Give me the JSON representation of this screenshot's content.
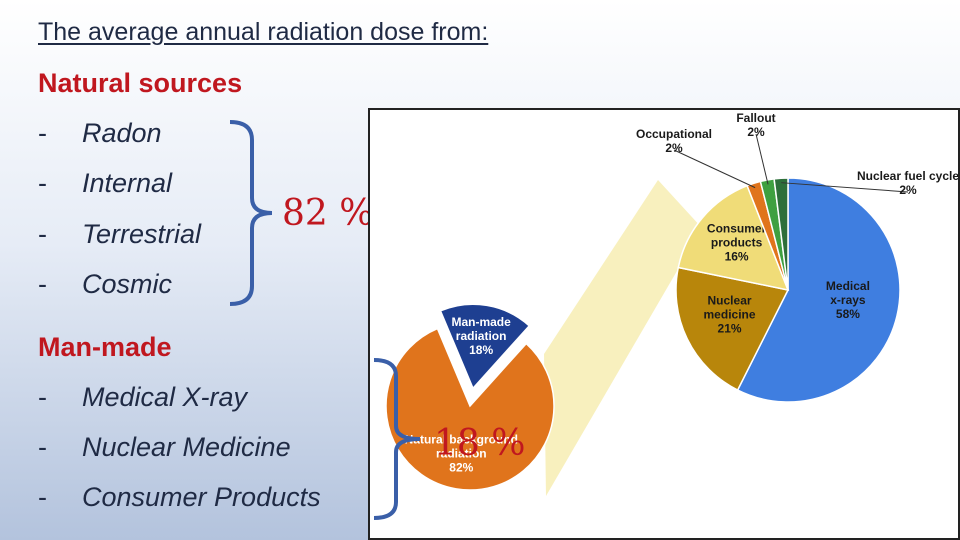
{
  "heading": "The average annual radiation dose from:",
  "natural": {
    "title": "Natural sources",
    "items": [
      "Radon",
      "Internal",
      "Terrestrial",
      "Cosmic"
    ],
    "percent_label": "82 %"
  },
  "manmade": {
    "title": "Man-made",
    "items": [
      "Medical X-ray",
      "Nuclear Medicine",
      "Consumer Products"
    ],
    "percent_label": "18 %"
  },
  "dash": "-",
  "chart_data": [
    {
      "type": "pie",
      "slices": [
        {
          "label_lines": [
            "Natural background",
            "radiation",
            "82%"
          ],
          "value": 82,
          "color": "#e0741c"
        },
        {
          "label_lines": [
            "Man-made",
            "radiation",
            "18%"
          ],
          "value": 18,
          "color": "#1e3f91"
        }
      ]
    },
    {
      "type": "pie",
      "slices": [
        {
          "label_lines": [
            "Medical",
            "x-rays",
            "58%"
          ],
          "value": 58,
          "color": "#3f7ee0"
        },
        {
          "label_lines": [
            "Nuclear",
            "medicine",
            "21%"
          ],
          "value": 21,
          "color": "#b8860b"
        },
        {
          "label_lines": [
            "Consumer",
            "products",
            "16%"
          ],
          "value": 16,
          "color": "#f0dc78"
        },
        {
          "label_lines": [
            "Occupational",
            "2%"
          ],
          "value": 2,
          "color": "#e0741c"
        },
        {
          "label_lines": [
            "Fallout",
            "2%"
          ],
          "value": 2,
          "color": "#3fa040"
        },
        {
          "label_lines": [
            "Nuclear fuel cycle",
            "2%"
          ],
          "value": 2,
          "color": "#2e6f3a"
        }
      ]
    }
  ]
}
